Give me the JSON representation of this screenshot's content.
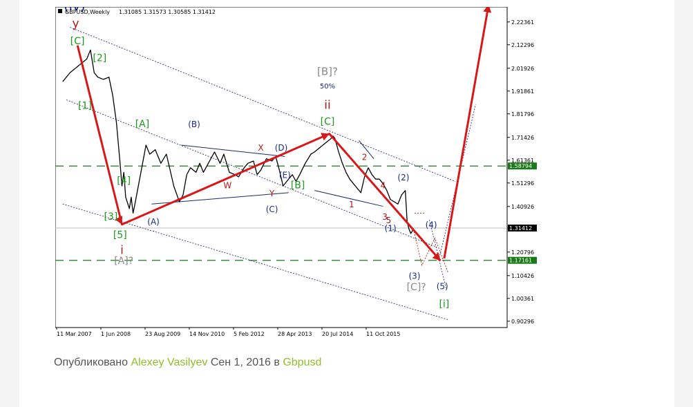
{
  "chart_data": {
    "type": "line",
    "header": {
      "symbol": "GBPUSD,Weekly",
      "ohlc": "1.31085 1.31573 1.30585 1.31412"
    },
    "x_ticks": [
      "11 Mar 2007",
      "1 Jun 2008",
      "23 Aug 2009",
      "14 Nov 2010",
      "5 Feb 2012",
      "28 Apr 2013",
      "20 Jul 2014",
      "11 Oct 2015"
    ],
    "y_ticks": [
      2.22361,
      2.12296,
      2.01926,
      1.91861,
      1.81796,
      1.71426,
      1.61361,
      1.51296,
      1.40926,
      1.31412,
      1.20796,
      1.10426,
      1.00361,
      0.90296
    ],
    "ylim": [
      0.875,
      2.29
    ],
    "price_tags": [
      {
        "value": 1.58794,
        "label": "1.58794",
        "color": "#1a7a1a"
      },
      {
        "value": 1.31412,
        "label": "1.31412",
        "color": "#000000"
      },
      {
        "value": 1.17161,
        "label": "1.17161",
        "color": "#1a7a1a"
      }
    ],
    "price_series": [
      [
        2007.2,
        1.96
      ],
      [
        2007.4,
        2.0
      ],
      [
        2007.55,
        2.02
      ],
      [
        2007.7,
        2.04
      ],
      [
        2007.85,
        2.06
      ],
      [
        2007.95,
        2.1
      ],
      [
        2008.05,
        2.0
      ],
      [
        2008.15,
        1.98
      ],
      [
        2008.3,
        1.97
      ],
      [
        2008.45,
        1.98
      ],
      [
        2008.55,
        1.9
      ],
      [
        2008.65,
        1.78
      ],
      [
        2008.75,
        1.6
      ],
      [
        2008.8,
        1.5
      ],
      [
        2008.85,
        1.56
      ],
      [
        2008.9,
        1.45
      ],
      [
        2009.0,
        1.4
      ],
      [
        2009.05,
        1.45
      ],
      [
        2009.1,
        1.38
      ],
      [
        2009.15,
        1.42
      ],
      [
        2009.3,
        1.55
      ],
      [
        2009.45,
        1.68
      ],
      [
        2009.55,
        1.64
      ],
      [
        2009.7,
        1.66
      ],
      [
        2009.85,
        1.6
      ],
      [
        2010.0,
        1.64
      ],
      [
        2010.1,
        1.57
      ],
      [
        2010.2,
        1.5
      ],
      [
        2010.35,
        1.43
      ],
      [
        2010.45,
        1.46
      ],
      [
        2010.55,
        1.55
      ],
      [
        2010.65,
        1.58
      ],
      [
        2010.8,
        1.56
      ],
      [
        2010.9,
        1.6
      ],
      [
        2011.0,
        1.56
      ],
      [
        2011.2,
        1.62
      ],
      [
        2011.3,
        1.65
      ],
      [
        2011.45,
        1.6
      ],
      [
        2011.55,
        1.64
      ],
      [
        2011.7,
        1.56
      ],
      [
        2011.85,
        1.55
      ],
      [
        2011.95,
        1.54
      ],
      [
        2012.1,
        1.58
      ],
      [
        2012.2,
        1.6
      ],
      [
        2012.35,
        1.61
      ],
      [
        2012.45,
        1.55
      ],
      [
        2012.55,
        1.57
      ],
      [
        2012.7,
        1.62
      ],
      [
        2012.85,
        1.61
      ],
      [
        2012.95,
        1.63
      ],
      [
        2013.05,
        1.57
      ],
      [
        2013.15,
        1.5
      ],
      [
        2013.25,
        1.52
      ],
      [
        2013.4,
        1.55
      ],
      [
        2013.5,
        1.52
      ],
      [
        2013.6,
        1.55
      ],
      [
        2013.75,
        1.6
      ],
      [
        2013.9,
        1.64
      ],
      [
        2014.0,
        1.65
      ],
      [
        2014.15,
        1.67
      ],
      [
        2014.3,
        1.69
      ],
      [
        2014.45,
        1.71
      ],
      [
        2014.5,
        1.72
      ],
      [
        2014.55,
        1.71
      ],
      [
        2014.65,
        1.65
      ],
      [
        2014.75,
        1.6
      ],
      [
        2014.85,
        1.56
      ],
      [
        2014.95,
        1.53
      ],
      [
        2015.05,
        1.51
      ],
      [
        2015.15,
        1.49
      ],
      [
        2015.25,
        1.47
      ],
      [
        2015.35,
        1.54
      ],
      [
        2015.45,
        1.58
      ],
      [
        2015.55,
        1.55
      ],
      [
        2015.65,
        1.53
      ],
      [
        2015.75,
        1.53
      ],
      [
        2015.85,
        1.51
      ],
      [
        2015.95,
        1.48
      ],
      [
        2016.05,
        1.44
      ],
      [
        2016.15,
        1.43
      ],
      [
        2016.25,
        1.42
      ],
      [
        2016.35,
        1.46
      ],
      [
        2016.45,
        1.48
      ],
      [
        2016.5,
        1.34
      ],
      [
        2016.55,
        1.31
      ],
      [
        2016.6,
        1.29
      ],
      [
        2016.67,
        1.31
      ]
    ],
    "wave_labels": [
      {
        "t": "(iv)",
        "x": 2007.52,
        "y": 2.275,
        "c": "#0d1d8a",
        "s": 19
      },
      {
        "t": "y",
        "x": 2007.55,
        "y": 2.2,
        "c": "#b01818",
        "s": 17
      },
      {
        "t": "[C]",
        "x": 2007.6,
        "y": 2.125,
        "c": "#1a9a1a",
        "s": 14
      },
      {
        "t": "[2]",
        "x": 2008.2,
        "y": 2.05,
        "c": "#1a9a1a",
        "s": 14
      },
      {
        "t": "[1]",
        "x": 2007.8,
        "y": 1.84,
        "c": "#1a9a1a",
        "s": 14
      },
      {
        "t": "[A]",
        "x": 2009.35,
        "y": 1.76,
        "c": "#1a9a1a",
        "s": 14
      },
      {
        "t": "[4]",
        "x": 2008.85,
        "y": 1.51,
        "c": "#1a9a1a",
        "s": 14
      },
      {
        "t": "[3]",
        "x": 2008.5,
        "y": 1.35,
        "c": "#1a9a1a",
        "s": 14
      },
      {
        "t": "[5]",
        "x": 2008.75,
        "y": 1.27,
        "c": "#1a9a1a",
        "s": 14
      },
      {
        "t": "i",
        "x": 2008.8,
        "y": 1.2,
        "c": "#b01818",
        "s": 17
      },
      {
        "t": "[A]?",
        "x": 2008.85,
        "y": 1.155,
        "c": "#888888",
        "s": 14
      },
      {
        "t": "(A)",
        "x": 2009.65,
        "y": 1.33,
        "c": "#1a2a8a",
        "s": 12
      },
      {
        "t": "(B)",
        "x": 2010.75,
        "y": 1.76,
        "c": "#1a2a8a",
        "s": 12
      },
      {
        "t": "W",
        "x": 2011.65,
        "y": 1.49,
        "c": "#b01818",
        "s": 12
      },
      {
        "t": "X",
        "x": 2012.55,
        "y": 1.655,
        "c": "#b01818",
        "s": 12
      },
      {
        "t": "Y",
        "x": 2012.85,
        "y": 1.455,
        "c": "#b01818",
        "s": 12
      },
      {
        "t": "(C)",
        "x": 2012.85,
        "y": 1.385,
        "c": "#1a2a8a",
        "s": 12
      },
      {
        "t": "(D)",
        "x": 2013.1,
        "y": 1.655,
        "c": "#1a2a8a",
        "s": 12
      },
      {
        "t": "(E)",
        "x": 2013.2,
        "y": 1.535,
        "c": "#1a2a8a",
        "s": 12
      },
      {
        "t": "[B]",
        "x": 2013.55,
        "y": 1.49,
        "c": "#1a9a1a",
        "s": 14
      },
      {
        "t": "[B]?",
        "x": 2014.35,
        "y": 1.99,
        "c": "#888888",
        "s": 15
      },
      {
        "t": "50%",
        "x": 2014.35,
        "y": 1.93,
        "c": "#1a2a8a",
        "s": 10
      },
      {
        "t": "ii",
        "x": 2014.35,
        "y": 1.84,
        "c": "#b01818",
        "s": 17
      },
      {
        "t": "[C]",
        "x": 2014.35,
        "y": 1.77,
        "c": "#1a9a1a",
        "s": 14
      },
      {
        "t": "2",
        "x": 2015.35,
        "y": 1.615,
        "c": "#b01818",
        "s": 12
      },
      {
        "t": "1",
        "x": 2015.0,
        "y": 1.405,
        "c": "#b01818",
        "s": 12
      },
      {
        "t": "4",
        "x": 2015.85,
        "y": 1.49,
        "c": "#b01818",
        "s": 12
      },
      {
        "t": "(2)",
        "x": 2016.4,
        "y": 1.525,
        "c": "#1a2a8a",
        "s": 12
      },
      {
        "t": "3",
        "x": 2015.9,
        "y": 1.35,
        "c": "#b01818",
        "s": 12
      },
      {
        "t": "5",
        "x": 2016.0,
        "y": 1.335,
        "c": "#b01818",
        "s": 12
      },
      {
        "t": "(1)",
        "x": 2016.05,
        "y": 1.3,
        "c": "#1a2a8a",
        "s": 12
      },
      {
        "t": "(4)",
        "x": 2017.15,
        "y": 1.315,
        "c": "#1a2a8a",
        "s": 12
      },
      {
        "t": "(3)",
        "x": 2016.7,
        "y": 1.09,
        "c": "#1a2a8a",
        "s": 12
      },
      {
        "t": "[C]?",
        "x": 2016.75,
        "y": 1.04,
        "c": "#888888",
        "s": 14
      },
      {
        "t": "(5)",
        "x": 2017.45,
        "y": 1.045,
        "c": "#1a2a8a",
        "s": 12
      },
      {
        "t": "[i]",
        "x": 2017.5,
        "y": 0.965,
        "c": "#1a9a1a",
        "s": 14
      }
    ]
  },
  "byline": {
    "prefix": "Опубликовано",
    "author": "Alexey Vasilyev",
    "date": "Сен 1, 2016 в",
    "category": "Gbpusd"
  }
}
